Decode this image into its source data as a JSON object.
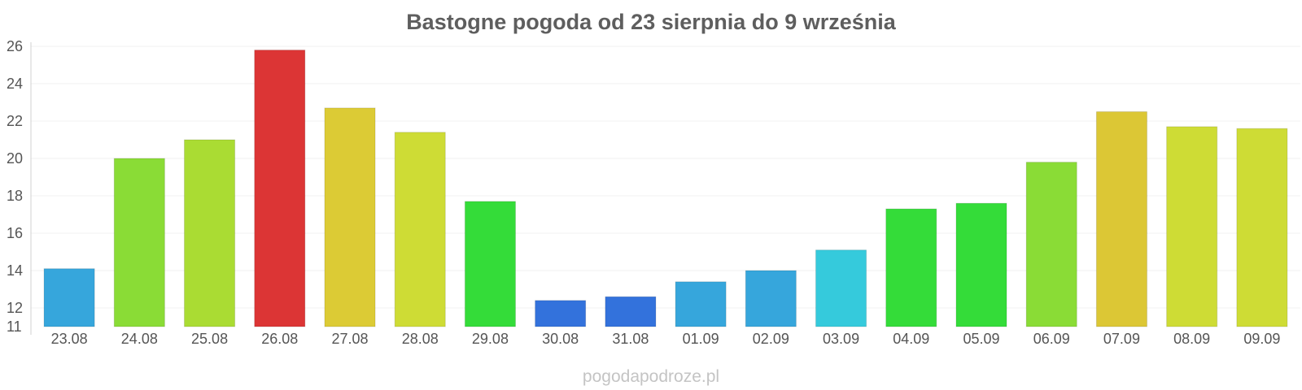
{
  "chart_data": {
    "type": "bar",
    "title": "Bastogne pogoda od 23 sierpnia do 9 września",
    "xlabel": "",
    "ylabel": "",
    "ylim": [
      11,
      26
    ],
    "yticks": [
      11,
      12,
      14,
      16,
      18,
      20,
      22,
      24,
      26
    ],
    "grid": true,
    "legend": "none",
    "categories": [
      "23.08",
      "24.08",
      "25.08",
      "26.08",
      "27.08",
      "28.08",
      "29.08",
      "30.08",
      "31.08",
      "01.09",
      "02.09",
      "03.09",
      "04.09",
      "05.09",
      "06.09",
      "07.09",
      "08.09",
      "09.09"
    ],
    "values": [
      14.1,
      20.0,
      21.0,
      25.8,
      22.7,
      21.4,
      17.7,
      12.4,
      12.6,
      13.4,
      14.0,
      15.1,
      17.3,
      17.6,
      19.8,
      22.5,
      21.7,
      21.6
    ],
    "colors": [
      "#36a6dc",
      "#8adc36",
      "#aadc33",
      "#dc3535",
      "#dccb35",
      "#cedc35",
      "#34dc39",
      "#3372dc",
      "#3372dc",
      "#36a6dc",
      "#36a6dc",
      "#35cadc",
      "#34dc39",
      "#34dc39",
      "#8adc36",
      "#dcc735",
      "#cedc35",
      "#cedc35"
    ]
  },
  "watermark": "pogodapodroze.pl"
}
